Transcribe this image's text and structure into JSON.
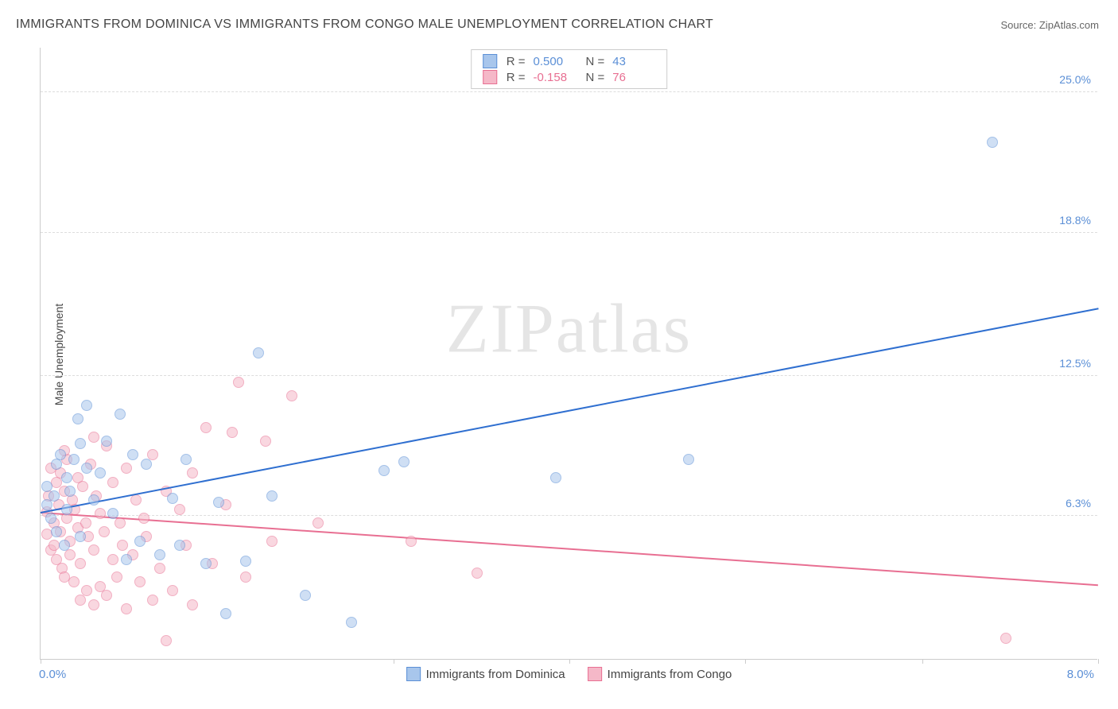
{
  "title": "IMMIGRANTS FROM DOMINICA VS IMMIGRANTS FROM CONGO MALE UNEMPLOYMENT CORRELATION CHART",
  "source_label": "Source: ",
  "source_value": "ZipAtlas.com",
  "ylabel": "Male Unemployment",
  "watermark_a": "ZIP",
  "watermark_b": "atlas",
  "chart": {
    "type": "scatter",
    "background_color": "#ffffff",
    "grid_color": "#dddddd",
    "axis_color": "#cccccc",
    "xlim": [
      0.0,
      8.0
    ],
    "ylim": [
      0.0,
      27.0
    ],
    "xticks": [
      0.0,
      2.67,
      4.0,
      5.33,
      6.67,
      8.0
    ],
    "x_min_label": "0.0%",
    "x_max_label": "8.0%",
    "ytick_lines": [
      6.3,
      12.5,
      18.8,
      25.0
    ],
    "ytick_labels": [
      "6.3%",
      "12.5%",
      "18.8%",
      "25.0%"
    ],
    "ytick_color": "#5b8fd6",
    "marker_radius": 7,
    "marker_opacity": 0.55,
    "marker_stroke_width": 1
  },
  "series": {
    "dominica": {
      "label": "Immigrants from Dominica",
      "fill": "#a8c6ec",
      "stroke": "#5b8fd6",
      "line_color": "#2f6fd0",
      "r_label": "R =",
      "r_value": "0.500",
      "n_label": "N =",
      "n_value": "43",
      "trend": {
        "x1": 0.0,
        "y1": 6.4,
        "x2": 8.0,
        "y2": 15.4
      },
      "points": [
        [
          0.05,
          6.8
        ],
        [
          0.05,
          7.6
        ],
        [
          0.08,
          6.2
        ],
        [
          0.1,
          7.2
        ],
        [
          0.12,
          8.6
        ],
        [
          0.12,
          5.6
        ],
        [
          0.15,
          9.0
        ],
        [
          0.2,
          8.0
        ],
        [
          0.2,
          6.6
        ],
        [
          0.22,
          7.4
        ],
        [
          0.25,
          8.8
        ],
        [
          0.28,
          10.6
        ],
        [
          0.3,
          9.5
        ],
        [
          0.3,
          5.4
        ],
        [
          0.35,
          8.4
        ],
        [
          0.35,
          11.2
        ],
        [
          0.4,
          7.0
        ],
        [
          0.45,
          8.2
        ],
        [
          0.5,
          9.6
        ],
        [
          0.55,
          6.4
        ],
        [
          0.6,
          10.8
        ],
        [
          0.65,
          4.4
        ],
        [
          0.7,
          9.0
        ],
        [
          0.75,
          5.2
        ],
        [
          0.8,
          8.6
        ],
        [
          0.9,
          4.6
        ],
        [
          1.0,
          7.1
        ],
        [
          1.05,
          5.0
        ],
        [
          1.1,
          8.8
        ],
        [
          1.25,
          4.2
        ],
        [
          1.35,
          6.9
        ],
        [
          1.55,
          4.3
        ],
        [
          1.65,
          13.5
        ],
        [
          1.75,
          7.2
        ],
        [
          1.4,
          2.0
        ],
        [
          2.35,
          1.6
        ],
        [
          2.0,
          2.8
        ],
        [
          2.6,
          8.3
        ],
        [
          2.75,
          8.7
        ],
        [
          3.9,
          8.0
        ],
        [
          4.9,
          8.8
        ],
        [
          7.2,
          22.8
        ],
        [
          0.18,
          5.0
        ]
      ]
    },
    "congo": {
      "label": "Immigrants from Congo",
      "fill": "#f5b8c8",
      "stroke": "#e86f92",
      "line_color": "#e86f92",
      "r_label": "R =",
      "r_value": "-0.158",
      "n_label": "N =",
      "n_value": "76",
      "trend": {
        "x1": 0.0,
        "y1": 6.4,
        "x2": 8.0,
        "y2": 3.2
      },
      "points": [
        [
          0.05,
          6.5
        ],
        [
          0.05,
          5.5
        ],
        [
          0.06,
          7.2
        ],
        [
          0.08,
          4.8
        ],
        [
          0.08,
          8.4
        ],
        [
          0.1,
          6.0
        ],
        [
          0.1,
          5.0
        ],
        [
          0.12,
          7.8
        ],
        [
          0.12,
          4.4
        ],
        [
          0.14,
          6.8
        ],
        [
          0.15,
          5.6
        ],
        [
          0.15,
          8.2
        ],
        [
          0.16,
          4.0
        ],
        [
          0.18,
          7.4
        ],
        [
          0.18,
          3.6
        ],
        [
          0.2,
          6.2
        ],
        [
          0.2,
          8.8
        ],
        [
          0.22,
          5.2
        ],
        [
          0.22,
          4.6
        ],
        [
          0.24,
          7.0
        ],
        [
          0.25,
          3.4
        ],
        [
          0.26,
          6.6
        ],
        [
          0.28,
          5.8
        ],
        [
          0.28,
          8.0
        ],
        [
          0.3,
          4.2
        ],
        [
          0.3,
          2.6
        ],
        [
          0.32,
          7.6
        ],
        [
          0.34,
          6.0
        ],
        [
          0.35,
          3.0
        ],
        [
          0.36,
          5.4
        ],
        [
          0.38,
          8.6
        ],
        [
          0.4,
          4.8
        ],
        [
          0.4,
          2.4
        ],
        [
          0.42,
          7.2
        ],
        [
          0.45,
          6.4
        ],
        [
          0.45,
          3.2
        ],
        [
          0.48,
          5.6
        ],
        [
          0.5,
          9.4
        ],
        [
          0.5,
          2.8
        ],
        [
          0.55,
          4.4
        ],
        [
          0.55,
          7.8
        ],
        [
          0.58,
          3.6
        ],
        [
          0.6,
          6.0
        ],
        [
          0.62,
          5.0
        ],
        [
          0.65,
          8.4
        ],
        [
          0.65,
          2.2
        ],
        [
          0.7,
          4.6
        ],
        [
          0.72,
          7.0
        ],
        [
          0.75,
          3.4
        ],
        [
          0.78,
          6.2
        ],
        [
          0.8,
          5.4
        ],
        [
          0.85,
          9.0
        ],
        [
          0.85,
          2.6
        ],
        [
          0.9,
          4.0
        ],
        [
          0.95,
          7.4
        ],
        [
          1.0,
          3.0
        ],
        [
          1.05,
          6.6
        ],
        [
          1.1,
          5.0
        ],
        [
          1.15,
          8.2
        ],
        [
          1.15,
          2.4
        ],
        [
          1.25,
          10.2
        ],
        [
          1.3,
          4.2
        ],
        [
          1.4,
          6.8
        ],
        [
          1.45,
          10.0
        ],
        [
          1.5,
          12.2
        ],
        [
          1.55,
          3.6
        ],
        [
          1.7,
          9.6
        ],
        [
          1.75,
          5.2
        ],
        [
          1.9,
          11.6
        ],
        [
          2.1,
          6.0
        ],
        [
          2.8,
          5.2
        ],
        [
          3.3,
          3.8
        ],
        [
          0.95,
          0.8
        ],
        [
          7.3,
          0.9
        ],
        [
          0.4,
          9.8
        ],
        [
          0.18,
          9.2
        ]
      ]
    }
  }
}
